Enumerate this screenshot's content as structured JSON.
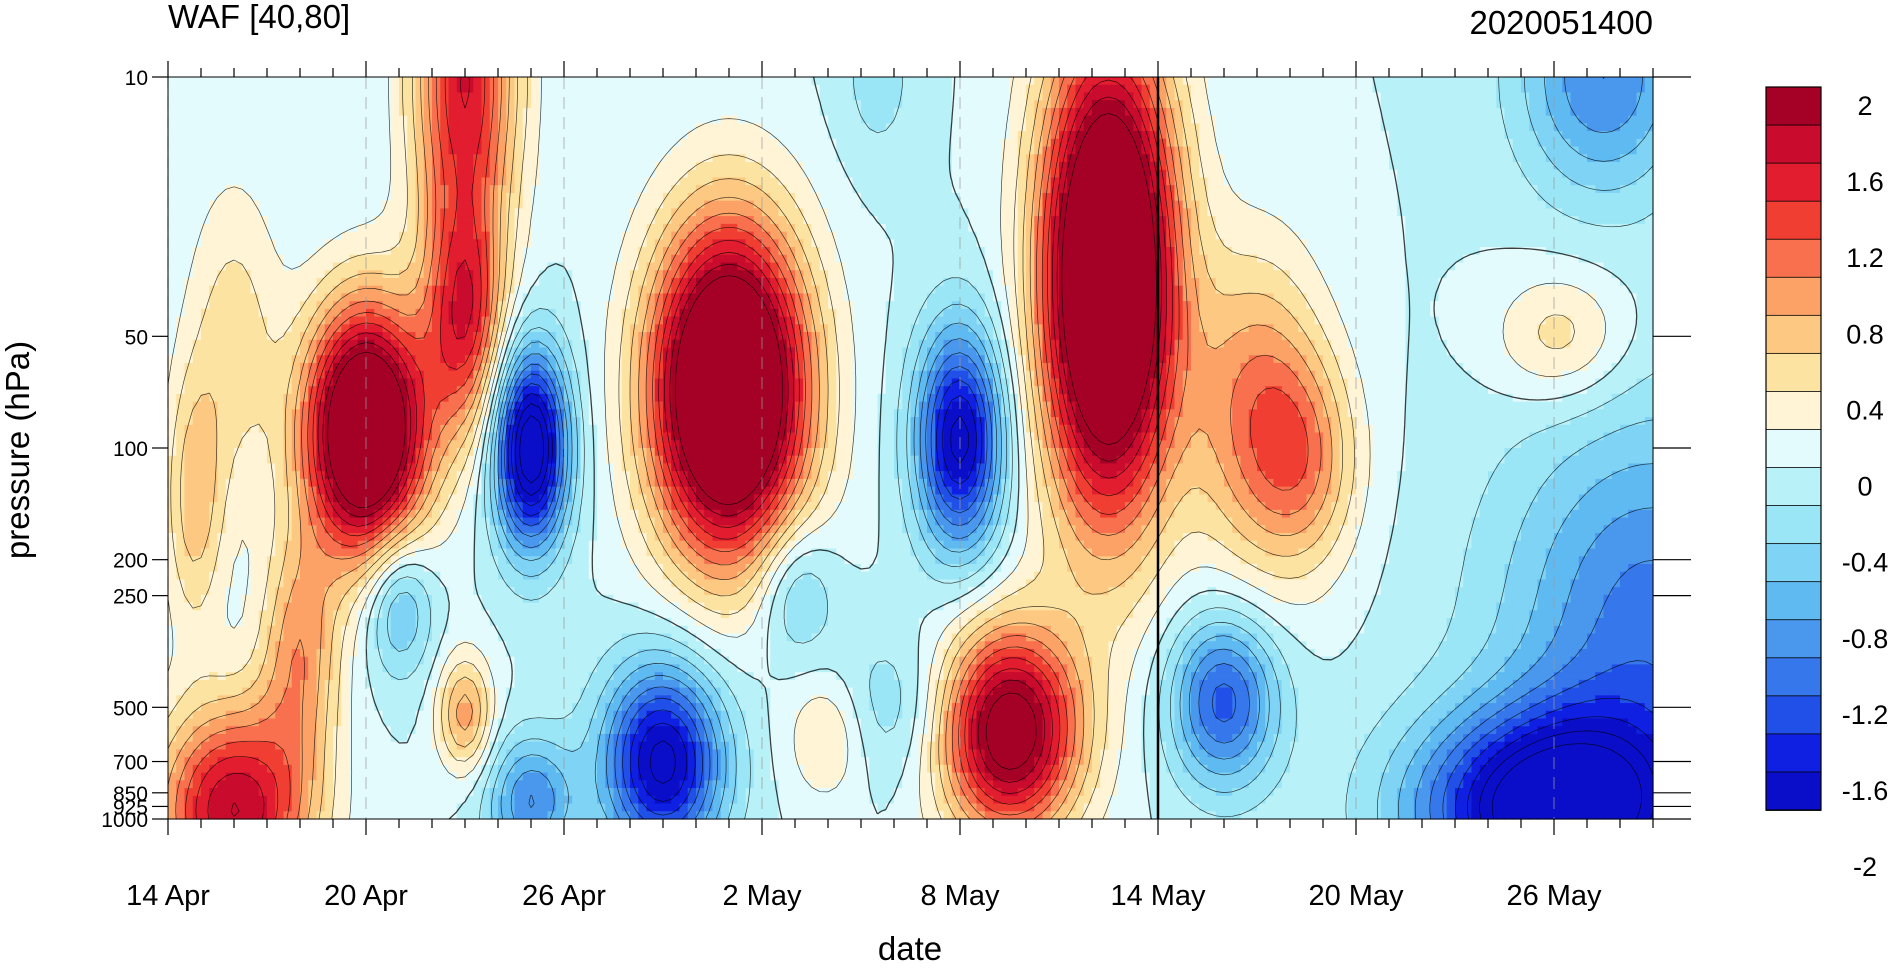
{
  "chart_data": {
    "type": "heatmap",
    "title": "WAF [40,80]",
    "subtitle": "2020051400",
    "xlabel": "date",
    "ylabel": "pressure (hPa)",
    "x_ticks": [
      "14 Apr",
      "20 Apr",
      "26 Apr",
      "2 May",
      "8 May",
      "14 May",
      "20 May",
      "26 May"
    ],
    "x_tick_values": [
      0,
      6,
      12,
      18,
      24,
      30,
      36,
      42
    ],
    "xlim": [
      0,
      45
    ],
    "y_ticks": [
      "10",
      "50",
      "100",
      "200",
      "250",
      "500",
      "700",
      "850",
      "925",
      "1000"
    ],
    "y_tick_values": [
      10,
      50,
      100,
      200,
      250,
      500,
      700,
      850,
      925,
      1000
    ],
    "ylim": [
      1000,
      10
    ],
    "y_scale": "log",
    "current_date_marker": 30,
    "colorbar": {
      "labels": [
        "2",
        "1.6",
        "1.2",
        "0.8",
        "0.4",
        "0",
        "-0.4",
        "-0.8",
        "-1.2",
        "-1.6",
        "-2"
      ],
      "label_values": [
        2,
        1.6,
        1.2,
        0.8,
        0.4,
        0,
        -0.4,
        -0.8,
        -1.2,
        -1.6,
        -2
      ],
      "colors": [
        "#a50026",
        "#c90b2d",
        "#e21d2f",
        "#f03f32",
        "#f9704e",
        "#fca267",
        "#fdc982",
        "#fde3a1",
        "#fff5d6",
        "#e4fbfd",
        "#b8f1f8",
        "#9ae6f6",
        "#7fd3f5",
        "#5fbaf2",
        "#4a98ee",
        "#3677ec",
        "#2050e8",
        "#1020e3",
        "#0a0ec9"
      ],
      "levels_step": 0.2,
      "levels_min": -2,
      "levels_max": 2
    },
    "anomalies": [
      {
        "t": 6,
        "p": 90,
        "amp": 3.0,
        "wt": 1.8,
        "wp": 0.95
      },
      {
        "t": 9,
        "p": 45,
        "amp": 1.4,
        "wt": 1.2,
        "wp": 0.9
      },
      {
        "t": 9,
        "p": 10,
        "amp": 1.6,
        "wt": 1.6,
        "wp": 1.3
      },
      {
        "t": 17,
        "p": 70,
        "amp": 3.3,
        "wt": 2.3,
        "wp": 1.25
      },
      {
        "t": 28.5,
        "p": 35,
        "amp": 3.3,
        "wt": 2.0,
        "wp": 1.8
      },
      {
        "t": 33,
        "p": 80,
        "amp": 1.0,
        "wt": 2.0,
        "wp": 1.2
      },
      {
        "t": 34.5,
        "p": 110,
        "amp": 0.7,
        "wt": 1.6,
        "wp": 0.8
      },
      {
        "t": 2,
        "p": 950,
        "amp": 1.8,
        "wt": 2.3,
        "wp": 0.8
      },
      {
        "t": 4,
        "p": 350,
        "amp": 0.9,
        "wt": 1.2,
        "wp": 0.9
      },
      {
        "t": 25.5,
        "p": 580,
        "amp": 2.3,
        "wt": 2.1,
        "wp": 0.8
      },
      {
        "t": 9,
        "p": 520,
        "amp": 0.9,
        "wt": 0.8,
        "wp": 0.45
      },
      {
        "t": 2,
        "p": 50,
        "amp": 0.5,
        "wt": 1.4,
        "wp": 1.2
      },
      {
        "t": 0.8,
        "p": 140,
        "amp": 0.7,
        "wt": 0.9,
        "wp": 1.0
      },
      {
        "t": 20,
        "p": 600,
        "amp": 0.5,
        "wt": 1.2,
        "wp": 0.5
      },
      {
        "t": 42.2,
        "p": 50,
        "amp": 0.55,
        "wt": 2.0,
        "wp": 0.5
      },
      {
        "t": 11,
        "p": 100,
        "amp": -2.3,
        "wt": 1.1,
        "wp": 0.75
      },
      {
        "t": 24,
        "p": 95,
        "amp": -1.9,
        "wt": 1.3,
        "wp": 0.85
      },
      {
        "t": 15,
        "p": 700,
        "amp": -1.9,
        "wt": 1.8,
        "wp": 0.75
      },
      {
        "t": 11,
        "p": 900,
        "amp": -1.0,
        "wt": 1.3,
        "wp": 0.5
      },
      {
        "t": 32,
        "p": 480,
        "amp": -1.3,
        "wt": 1.6,
        "wp": 0.65
      },
      {
        "t": 42,
        "p": 950,
        "amp": -2.3,
        "wt": 4.0,
        "wp": 0.75
      },
      {
        "t": 45,
        "p": 300,
        "amp": -1.1,
        "wt": 4.5,
        "wp": 1.6
      },
      {
        "t": 43.5,
        "p": 10,
        "amp": -1.0,
        "wt": 2.5,
        "wp": 0.9
      },
      {
        "t": 7,
        "p": 260,
        "amp": -0.8,
        "wt": 1.0,
        "wp": 0.55
      },
      {
        "t": 19,
        "p": 240,
        "amp": -0.6,
        "wt": 1.2,
        "wp": 0.55
      },
      {
        "t": 22,
        "p": 500,
        "amp": -0.4,
        "wt": 2.0,
        "wp": 0.6
      },
      {
        "t": 21.5,
        "p": 10,
        "amp": -0.3,
        "wt": 1.2,
        "wp": 0.7
      }
    ]
  }
}
